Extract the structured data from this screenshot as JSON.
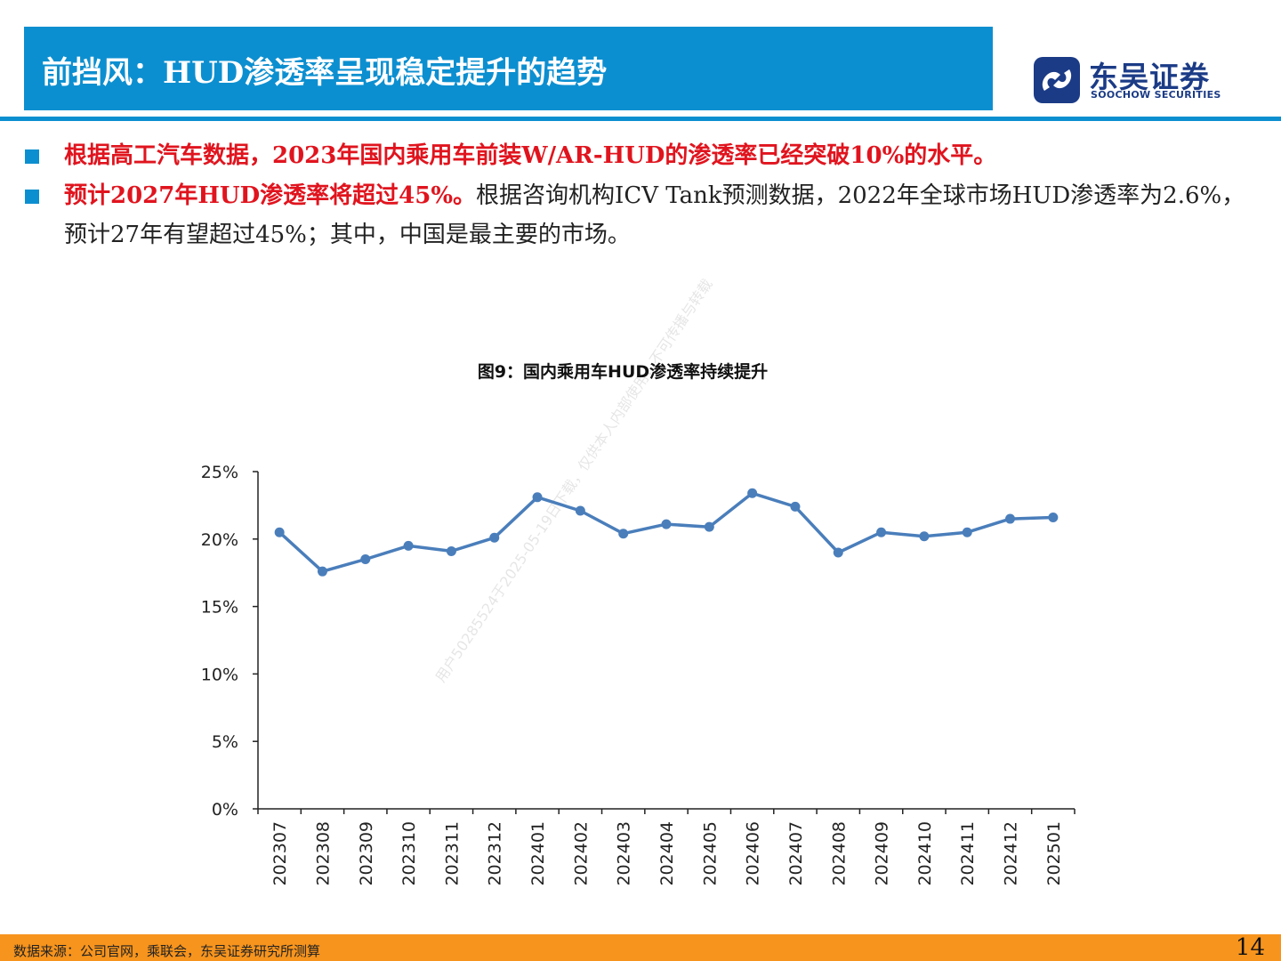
{
  "header": {
    "title": "前挡风：HUD渗透率呈现稳定提升的趋势",
    "logo_cn": "东吴证券",
    "logo_en": "SOOCHOW SECURITIES"
  },
  "bullets": [
    {
      "red": "根据高工汽车数据，2023年国内乘用车前装W/AR-HUD的渗透率已经突破10%的水平。",
      "text": ""
    },
    {
      "red": "预计2027年HUD渗透率将超过45%。",
      "text": "根据咨询机构ICV Tank预测数据，2022年全球市场HUD渗透率为2.6%，预计27年有望超过45%；其中，中国是最主要的市场。"
    }
  ],
  "watermark": "用户50285524于2025-05-19日下载，仅供本人内部使用，不可传播与转载",
  "chart_data": {
    "type": "line",
    "title": "图9：国内乘用车HUD渗透率持续提升",
    "categories": [
      "202307",
      "202308",
      "202309",
      "202310",
      "202311",
      "202312",
      "202401",
      "202402",
      "202403",
      "202404",
      "202405",
      "202406",
      "202407",
      "202408",
      "202409",
      "202410",
      "202411",
      "202412",
      "202501"
    ],
    "series": [
      {
        "values": [
          20.5,
          17.6,
          18.5,
          19.5,
          19.1,
          20.1,
          23.1,
          22.1,
          20.4,
          21.1,
          20.9,
          23.4,
          22.4,
          19.0,
          20.5,
          20.2,
          20.5,
          21.5,
          21.6
        ]
      }
    ],
    "y_ticks": [
      "0%",
      "5%",
      "10%",
      "15%",
      "20%",
      "25%"
    ],
    "ylim": [
      0,
      25
    ],
    "grid": false,
    "line_color": "#4a7ebb"
  },
  "footer": {
    "source": "数据来源：公司官网，乘联会，东吴证券研究所测算",
    "page": "14"
  }
}
